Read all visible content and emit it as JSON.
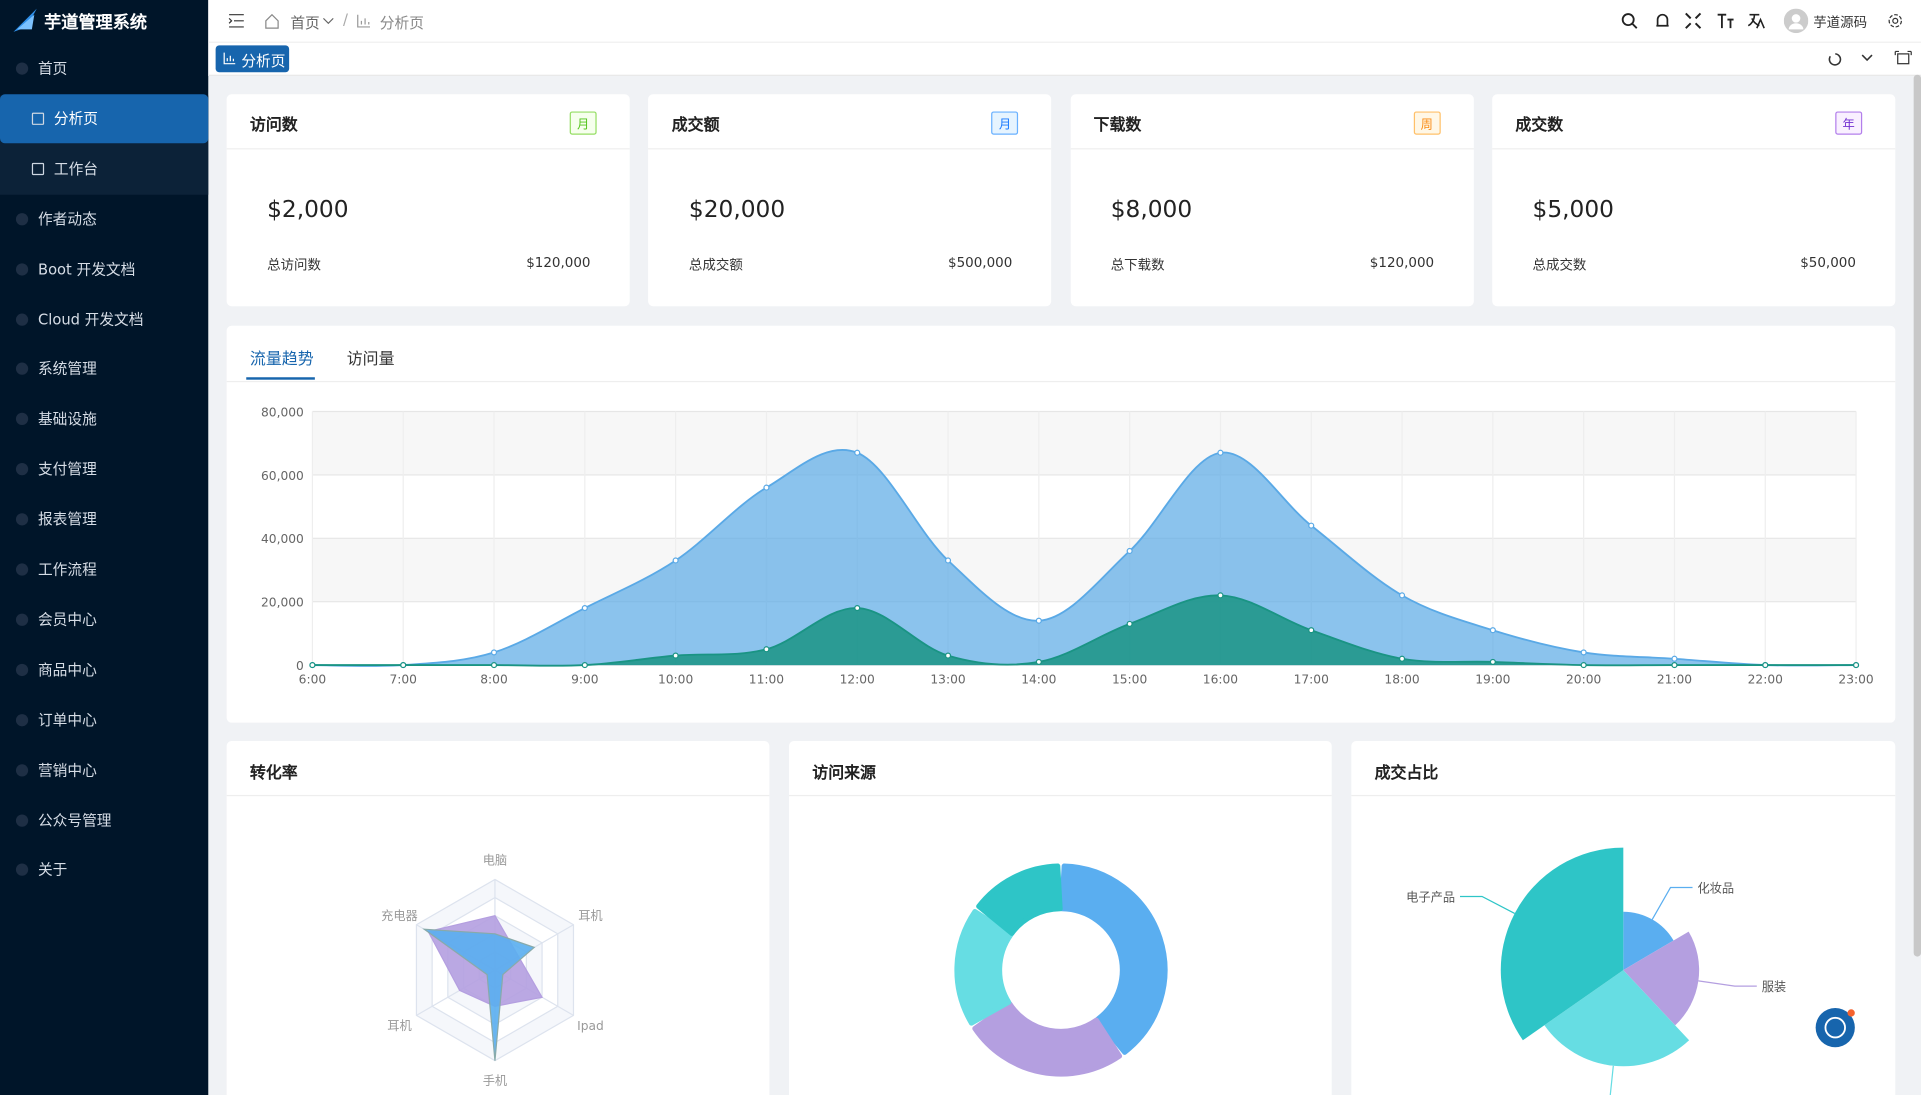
{
  "sidebar": {
    "brand": "芋道管理系统",
    "menu": [
      {
        "label": "首页",
        "expandable": true
      },
      {
        "label": "分析页",
        "level": 2,
        "active": true
      },
      {
        "label": "工作台",
        "level": 2
      },
      {
        "label": "作者动态"
      },
      {
        "label": "Boot 开发文档"
      },
      {
        "label": "Cloud 开发文档"
      },
      {
        "label": "系统管理",
        "expandable": true
      },
      {
        "label": "基础设施",
        "expandable": true
      },
      {
        "label": "支付管理",
        "expandable": true
      },
      {
        "label": "报表管理",
        "expandable": true
      },
      {
        "label": "工作流程",
        "expandable": true
      },
      {
        "label": "会员中心",
        "expandable": true
      },
      {
        "label": "商品中心",
        "expandable": true
      },
      {
        "label": "订单中心",
        "expandable": true
      },
      {
        "label": "营销中心",
        "expandable": true
      },
      {
        "label": "公众号管理",
        "expandable": true
      },
      {
        "label": "关于"
      }
    ]
  },
  "header": {
    "breadcrumb": [
      "首页",
      "分析页"
    ],
    "user": "芋道源码",
    "tab": "分析页"
  },
  "cards": [
    {
      "title": "访问数",
      "tag": "月",
      "tag_color": "green",
      "value": "$2,000",
      "footer_label": "总访问数",
      "footer_value": "$120,000"
    },
    {
      "title": "成交额",
      "tag": "月",
      "tag_color": "blue",
      "value": "$20,000",
      "footer_label": "总成交额",
      "footer_value": "$500,000"
    },
    {
      "title": "下载数",
      "tag": "周",
      "tag_color": "orange",
      "value": "$8,000",
      "footer_label": "总下载数",
      "footer_value": "$120,000"
    },
    {
      "title": "成交数",
      "tag": "年",
      "tag_color": "purple",
      "value": "$5,000",
      "footer_label": "总成交数",
      "footer_value": "$50,000"
    }
  ],
  "traffic": {
    "tabs": [
      "流量趋势",
      "访问量"
    ],
    "chart_data": {
      "type": "area",
      "categories": [
        "6:00",
        "7:00",
        "8:00",
        "9:00",
        "10:00",
        "11:00",
        "12:00",
        "13:00",
        "14:00",
        "15:00",
        "16:00",
        "17:00",
        "18:00",
        "19:00",
        "20:00",
        "21:00",
        "22:00",
        "23:00"
      ],
      "series": [
        {
          "color": "#5aa9e6",
          "values": [
            0,
            0,
            4000,
            18000,
            33000,
            56000,
            67000,
            33000,
            14000,
            36000,
            67000,
            44000,
            22000,
            11000,
            4000,
            2000,
            0,
            0
          ]
        },
        {
          "color": "#1a9484",
          "values": [
            0,
            0,
            0,
            0,
            3000,
            5000,
            18000,
            3000,
            1000,
            13000,
            22000,
            11000,
            2000,
            1000,
            0,
            0,
            0,
            0
          ]
        }
      ],
      "ylim": [
        0,
        80000
      ],
      "yticks": [
        0,
        {
          "value": 20000,
          "label": "20,000"
        },
        {
          "value": 40000,
          "label": "40,000"
        },
        {
          "value": 60000,
          "label": "60,000"
        },
        {
          "value": 80000,
          "label": "80,000"
        }
      ],
      "grid": true
    }
  },
  "conversion": {
    "title": "转化率",
    "chart_data": {
      "type": "radar",
      "categories": [
        "电脑",
        "耳机",
        "Ipad",
        "手机",
        "耳机",
        "充电器"
      ],
      "rlim": [
        0,
        100
      ],
      "series": [
        {
          "color": "#b49fe0",
          "values": [
            60,
            30,
            60,
            40,
            45,
            85
          ]
        },
        {
          "color": "#5aaef0",
          "values": [
            40,
            50,
            10,
            100,
            10,
            90
          ]
        }
      ]
    }
  },
  "source": {
    "title": "访问来源",
    "chart_data": {
      "type": "donut",
      "values": [
        40,
        26,
        19,
        15
      ],
      "colors": [
        "#5aaef0",
        "#b49fe0",
        "#66dde3",
        "#2ec5c7"
      ]
    }
  },
  "deal": {
    "title": "成交占比",
    "chart_data": {
      "type": "rose",
      "categories": [
        "化妆品",
        "服装",
        null,
        "电子产品"
      ],
      "values": [
        20,
        26,
        33,
        42
      ],
      "colors": [
        "#5aaef0",
        "#b49fe0",
        "#66dde3",
        "#2ec5c7"
      ]
    }
  }
}
